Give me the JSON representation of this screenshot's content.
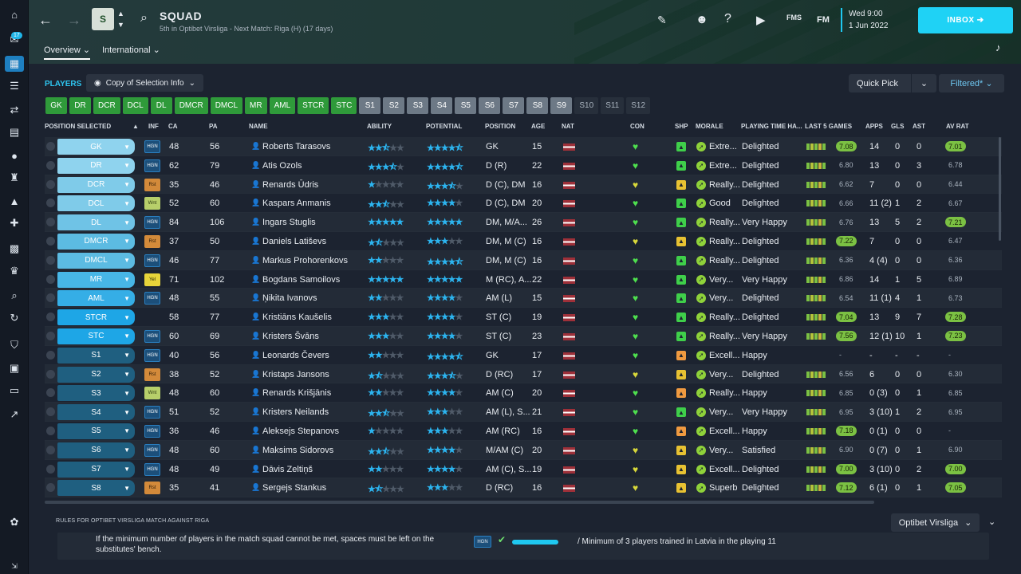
{
  "header": {
    "title": "SQUAD",
    "subtitle": "5th in Optibet Virsliga - Next Match: Riga (H) (17 days)",
    "date_day": "Wed 9:00",
    "date": "1 Jun 2022",
    "inbox_label": "INBOX",
    "fms_label": "FMS",
    "fm_label": "FM",
    "crest_text": "S",
    "tabs": [
      {
        "label": "Overview"
      },
      {
        "label": "International"
      }
    ]
  },
  "sidebar": {
    "badge": "17"
  },
  "toolbar": {
    "players_label": "PLAYERS",
    "copy_label": "Copy of Selection Info",
    "quick_pick_label": "Quick Pick",
    "filtered_label": "Filtered*"
  },
  "slots": [
    {
      "label": "GK",
      "state": "g"
    },
    {
      "label": "DR",
      "state": "g"
    },
    {
      "label": "DCR",
      "state": "g"
    },
    {
      "label": "DCL",
      "state": "g"
    },
    {
      "label": "DL",
      "state": "g"
    },
    {
      "label": "DMCR",
      "state": "g"
    },
    {
      "label": "DMCL",
      "state": "g"
    },
    {
      "label": "MR",
      "state": "g"
    },
    {
      "label": "AML",
      "state": "g"
    },
    {
      "label": "STCR",
      "state": "g"
    },
    {
      "label": "STC",
      "state": "g"
    },
    {
      "label": "S1",
      "state": "s"
    },
    {
      "label": "S2",
      "state": "s"
    },
    {
      "label": "S3",
      "state": "s"
    },
    {
      "label": "S4",
      "state": "s"
    },
    {
      "label": "S5",
      "state": "s"
    },
    {
      "label": "S6",
      "state": "s"
    },
    {
      "label": "S7",
      "state": "s"
    },
    {
      "label": "S8",
      "state": "s"
    },
    {
      "label": "S9",
      "state": "s"
    },
    {
      "label": "S10",
      "state": "d"
    },
    {
      "label": "S11",
      "state": "d"
    },
    {
      "label": "S12",
      "state": "d"
    }
  ],
  "columns": {
    "position_selected": "POSITION SELECTED",
    "inf": "INF",
    "ca": "CA",
    "pa": "PA",
    "name": "NAME",
    "ability": "ABILITY",
    "potential": "POTENTIAL",
    "position": "POSITION",
    "age": "AGE",
    "nat": "NAT",
    "con": "CON",
    "shp": "SHP",
    "morale": "MORALE",
    "playing_time": "PLAYING TIME HA...",
    "last5": "LAST 5 GAMES",
    "apps": "APPS",
    "gls": "GLS",
    "ast": "AST",
    "av_rat": "AV RAT"
  },
  "players": [
    {
      "slot": "GK",
      "inf": "HGN",
      "ca": "48",
      "pa": "56",
      "name": "Roberts Tarasovs",
      "ab": 2.5,
      "pot": 4.5,
      "position": "GK",
      "age": "15",
      "shp": "g",
      "morale_icon": "g",
      "morale": "Extre...",
      "pt": "Delighted",
      "last5": "7.08",
      "last5_hi": true,
      "apps": "14",
      "gls": "0",
      "ast": "0",
      "avrat": "7.01",
      "avrat_hi": true
    },
    {
      "slot": "DR",
      "inf": "HGN",
      "ca": "62",
      "pa": "79",
      "name": "Atis Ozols",
      "ab": 3.5,
      "pot": 4.5,
      "position": "D (R)",
      "age": "22",
      "shp": "g",
      "morale_icon": "g",
      "morale": "Extre...",
      "pt": "Delighted",
      "last5": "6.80",
      "last5_hi": false,
      "apps": "13",
      "gls": "0",
      "ast": "3",
      "avrat": "6.78",
      "avrat_hi": false
    },
    {
      "slot": "DCR",
      "inf": "Rst",
      "ca": "35",
      "pa": "46",
      "name": "Renards Ūdris",
      "ab": 1,
      "pot": 3.5,
      "position": "D (C), DM",
      "age": "16",
      "shp": "y",
      "morale_icon": "g",
      "morale": "Really...",
      "pt": "Delighted",
      "last5": "6.62",
      "last5_hi": false,
      "apps": "7",
      "gls": "0",
      "ast": "0",
      "avrat": "6.44",
      "avrat_hi": false
    },
    {
      "slot": "DCL",
      "inf": "Wnt",
      "ca": "52",
      "pa": "60",
      "name": "Kaspars Anmanis",
      "ab": 2.5,
      "pot": 4,
      "position": "D (C), DM",
      "age": "20",
      "shp": "g",
      "morale_icon": "g",
      "morale": "Good",
      "pt": "Delighted",
      "last5": "6.66",
      "last5_hi": false,
      "apps": "11 (2)",
      "gls": "1",
      "ast": "2",
      "avrat": "6.67",
      "avrat_hi": false
    },
    {
      "slot": "DL",
      "inf": "HGN",
      "ca": "84",
      "pa": "106",
      "name": "Ingars Stuglis",
      "ab": 5,
      "pot": 5,
      "position": "DM, M/A...",
      "age": "26",
      "shp": "g",
      "morale_icon": "g",
      "morale": "Really...",
      "pt": "Very Happy",
      "last5": "6.76",
      "last5_hi": false,
      "apps": "13",
      "gls": "5",
      "ast": "2",
      "avrat": "7.21",
      "avrat_hi": true
    },
    {
      "slot": "DMCR",
      "inf": "Rst",
      "ca": "37",
      "pa": "50",
      "name": "Daniels Latiševs",
      "ab": 1.5,
      "pot": 3,
      "position": "DM, M (C)",
      "age": "16",
      "shp": "y",
      "morale_icon": "g",
      "morale": "Really...",
      "pt": "Delighted",
      "last5": "7.22",
      "last5_hi": true,
      "apps": "7",
      "gls": "0",
      "ast": "0",
      "avrat": "6.47",
      "avrat_hi": false
    },
    {
      "slot": "DMCL",
      "inf": "HGN",
      "ca": "46",
      "pa": "77",
      "name": "Markus Prohorenkovs",
      "ab": 2,
      "pot": 4.5,
      "position": "DM, M (C)",
      "age": "16",
      "shp": "g",
      "morale_icon": "g",
      "morale": "Really...",
      "pt": "Delighted",
      "last5": "6.36",
      "last5_hi": false,
      "apps": "4 (4)",
      "gls": "0",
      "ast": "0",
      "avrat": "6.36",
      "avrat_hi": false
    },
    {
      "slot": "MR",
      "inf": "Yel",
      "ca": "71",
      "pa": "102",
      "name": "Bogdans Samoilovs",
      "ab": 5,
      "pot": 5,
      "position": "M (RC), A...",
      "age": "22",
      "shp": "g",
      "morale_icon": "g",
      "morale": "Very...",
      "pt": "Very Happy",
      "last5": "6.86",
      "last5_hi": false,
      "apps": "14",
      "gls": "1",
      "ast": "5",
      "avrat": "6.89",
      "avrat_hi": false
    },
    {
      "slot": "AML",
      "inf": "HGN",
      "ca": "48",
      "pa": "55",
      "name": "Ņikita Ivanovs",
      "ab": 2,
      "pot": 4,
      "position": "AM (L)",
      "age": "15",
      "shp": "g",
      "morale_icon": "g",
      "morale": "Very...",
      "pt": "Delighted",
      "last5": "6.54",
      "last5_hi": false,
      "apps": "11 (1)",
      "gls": "4",
      "ast": "1",
      "avrat": "6.73",
      "avrat_hi": false
    },
    {
      "slot": "STCR",
      "inf": "",
      "ca": "58",
      "pa": "77",
      "name": "Kristiāns Kaušelis",
      "ab": 3,
      "pot": 4,
      "position": "ST (C)",
      "age": "19",
      "shp": "g",
      "morale_icon": "g",
      "morale": "Really...",
      "pt": "Delighted",
      "last5": "7.04",
      "last5_hi": true,
      "apps": "13",
      "gls": "9",
      "ast": "7",
      "avrat": "7.28",
      "avrat_hi": true
    },
    {
      "slot": "STC",
      "inf": "HGN",
      "ca": "60",
      "pa": "69",
      "name": "Kristers Švāns",
      "ab": 3,
      "pot": 4,
      "position": "ST (C)",
      "age": "23",
      "shp": "g",
      "morale_icon": "g",
      "morale": "Really...",
      "pt": "Very Happy",
      "last5": "7.56",
      "last5_hi": true,
      "apps": "12 (1)",
      "gls": "10",
      "ast": "1",
      "avrat": "7.23",
      "avrat_hi": true
    },
    {
      "slot": "S1",
      "inf": "HGN",
      "ca": "40",
      "pa": "56",
      "name": "Leonards Čevers",
      "ab": 2,
      "pot": 4.5,
      "position": "GK",
      "age": "17",
      "shp": "o",
      "morale_icon": "g",
      "morale": "Excell...",
      "pt": "Happy",
      "last5": "-",
      "last5_hi": false,
      "apps": "-",
      "gls": "-",
      "ast": "-",
      "avrat": "-",
      "avrat_hi": false
    },
    {
      "slot": "S2",
      "inf": "Rst",
      "ca": "38",
      "pa": "52",
      "name": "Kristaps Jansons",
      "ab": 1.5,
      "pot": 3.5,
      "position": "D (RC)",
      "age": "17",
      "shp": "y",
      "morale_icon": "g",
      "morale": "Very...",
      "pt": "Delighted",
      "last5": "6.56",
      "last5_hi": false,
      "apps": "6",
      "gls": "0",
      "ast": "0",
      "avrat": "6.30",
      "avrat_hi": false
    },
    {
      "slot": "S3",
      "inf": "Wnt",
      "ca": "48",
      "pa": "60",
      "name": "Renards Krišjānis",
      "ab": 2,
      "pot": 4,
      "position": "AM (C)",
      "age": "20",
      "shp": "o",
      "morale_icon": "g",
      "morale": "Really...",
      "pt": "Happy",
      "last5": "6.85",
      "last5_hi": false,
      "apps": "0 (3)",
      "gls": "0",
      "ast": "1",
      "avrat": "6.85",
      "avrat_hi": false
    },
    {
      "slot": "S4",
      "inf": "HGN",
      "ca": "51",
      "pa": "52",
      "name": "Kristers Neilands",
      "ab": 2.5,
      "pot": 3,
      "position": "AM (L), S...",
      "age": "21",
      "shp": "g",
      "morale_icon": "g",
      "morale": "Very...",
      "pt": "Very Happy",
      "last5": "6.95",
      "last5_hi": false,
      "apps": "3 (10)",
      "gls": "1",
      "ast": "2",
      "avrat": "6.95",
      "avrat_hi": false
    },
    {
      "slot": "S5",
      "inf": "HGN",
      "ca": "36",
      "pa": "46",
      "name": "Aleksejs Stepanovs",
      "ab": 1,
      "pot": 3,
      "position": "AM (RC)",
      "age": "16",
      "shp": "o",
      "morale_icon": "g",
      "morale": "Excell...",
      "pt": "Happy",
      "last5": "7.18",
      "last5_hi": true,
      "apps": "0 (1)",
      "gls": "0",
      "ast": "0",
      "avrat": "-",
      "avrat_hi": false
    },
    {
      "slot": "S6",
      "inf": "HGN",
      "ca": "48",
      "pa": "60",
      "name": "Maksims Sidorovs",
      "ab": 2.5,
      "pot": 4,
      "position": "M/AM (C)",
      "age": "20",
      "shp": "y",
      "morale_icon": "g",
      "morale": "Very...",
      "pt": "Satisfied",
      "last5": "6.90",
      "last5_hi": false,
      "apps": "0 (7)",
      "gls": "0",
      "ast": "1",
      "avrat": "6.90",
      "avrat_hi": false
    },
    {
      "slot": "S7",
      "inf": "HGN",
      "ca": "48",
      "pa": "49",
      "name": "Dāvis Zeltiņš",
      "ab": 2,
      "pot": 4,
      "position": "AM (C), S...",
      "age": "19",
      "shp": "y",
      "morale_icon": "g",
      "morale": "Excell...",
      "pt": "Delighted",
      "last5": "7.00",
      "last5_hi": true,
      "apps": "3 (10)",
      "gls": "0",
      "ast": "2",
      "avrat": "7.00",
      "avrat_hi": true
    },
    {
      "slot": "S8",
      "inf": "Rst",
      "ca": "35",
      "pa": "41",
      "name": "Sergejs Stankus",
      "ab": 1.5,
      "pot": 3,
      "position": "D (RC)",
      "age": "16",
      "shp": "y",
      "morale_icon": "g",
      "morale": "Superb",
      "pt": "Delighted",
      "last5": "7.12",
      "last5_hi": true,
      "apps": "6 (1)",
      "gls": "0",
      "ast": "1",
      "avrat": "7.05",
      "avrat_hi": true
    }
  ],
  "rules": {
    "label": "RULES FOR OPTIBET VIRSLIGA MATCH AGAINST RIGA",
    "text": "If the minimum number of players in the match squad cannot be met, spaces must be left on the substitutes' bench.",
    "hgn": "HGN",
    "text2": "/  Minimum of 3 players trained in Latvia in the playing 11",
    "league": "Optibet Virsliga"
  },
  "colors": {
    "accent": "#1fd2f5",
    "slot_green": "#2f9a3a",
    "slot_grey": "#6d7986",
    "rating_green": "#7bc143"
  }
}
